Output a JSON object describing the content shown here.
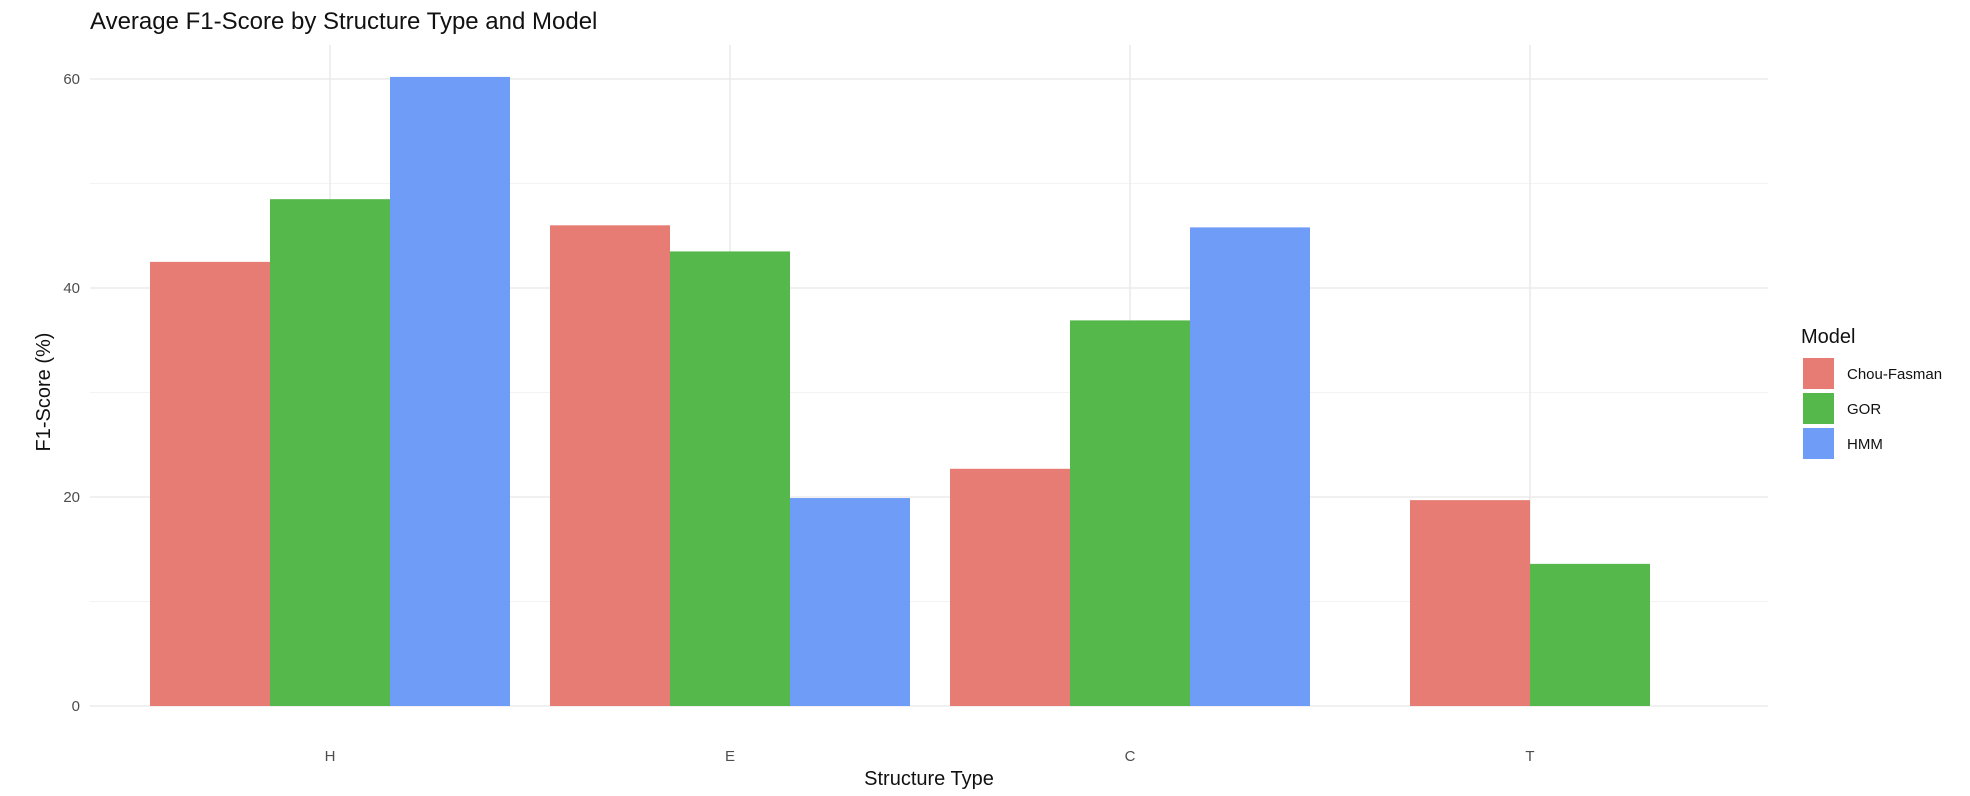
{
  "chart_data": {
    "type": "bar",
    "title": "Average F1-Score by Structure Type and Model",
    "xlabel": "Structure Type",
    "ylabel": "F1-Score (%)",
    "categories": [
      "H",
      "E",
      "C",
      "T"
    ],
    "ylim": [
      0,
      62
    ],
    "yticks": [
      0,
      20,
      40,
      60
    ],
    "grid": true,
    "legend": {
      "title": "Model",
      "position": "right"
    },
    "series": [
      {
        "name": "Chou-Fasman",
        "color": "#E67C73",
        "values": [
          42.5,
          46.0,
          22.7,
          19.7
        ]
      },
      {
        "name": "GOR",
        "color": "#54B84A",
        "values": [
          48.5,
          43.5,
          36.9,
          13.6
        ]
      },
      {
        "name": "HMM",
        "color": "#6F9CF7",
        "values": [
          60.2,
          19.9,
          45.8,
          null
        ]
      }
    ]
  }
}
